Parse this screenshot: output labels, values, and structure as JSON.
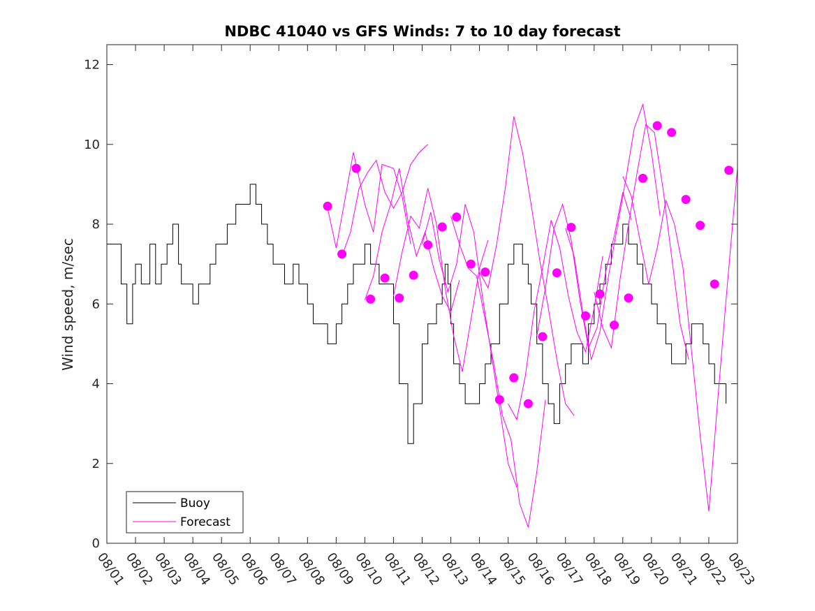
{
  "chart_data": {
    "type": "line",
    "title": "NDBC 41040 vs GFS Winds: 7 to 10 day forecast",
    "xlabel": "",
    "ylabel": "Wind speed, m/sec",
    "xlim": [
      0,
      22
    ],
    "ylim": [
      0,
      12.5
    ],
    "xticks": [
      0,
      1,
      2,
      3,
      4,
      5,
      6,
      7,
      8,
      9,
      10,
      11,
      12,
      13,
      14,
      15,
      16,
      17,
      18,
      19,
      20,
      21,
      22
    ],
    "xtick_labels": [
      "08/01",
      "08/02",
      "08/03",
      "08/04",
      "08/05",
      "08/06",
      "08/07",
      "08/08",
      "08/09",
      "08/10",
      "08/11",
      "08/12",
      "08/13",
      "08/14",
      "08/15",
      "08/16",
      "08/17",
      "08/18",
      "08/19",
      "08/20",
      "08/21",
      "08/22",
      "08/23"
    ],
    "yticks": [
      0,
      2,
      4,
      6,
      8,
      10,
      12
    ],
    "ytick_labels": [
      "0",
      "2",
      "4",
      "6",
      "8",
      "10",
      "12"
    ],
    "grid": false,
    "legend": {
      "position": "bottom-left",
      "entries": [
        "Buoy",
        "Forecast"
      ]
    },
    "colors": {
      "buoy": "#000000",
      "forecast": "#ff00ff",
      "axes": "#262626"
    },
    "series": [
      {
        "name": "Buoy",
        "x": [
          0,
          0.3,
          0.5,
          0.7,
          0.9,
          1.0,
          1.2,
          1.5,
          1.7,
          1.9,
          2.1,
          2.3,
          2.5,
          2.6,
          2.8,
          3.0,
          3.2,
          3.4,
          3.6,
          3.8,
          4.0,
          4.2,
          4.5,
          4.8,
          5.0,
          5.2,
          5.4,
          5.6,
          5.8,
          6.0,
          6.2,
          6.5,
          6.7,
          7.0,
          7.2,
          7.5,
          7.7,
          8.0,
          8.2,
          8.4,
          8.6,
          8.8,
          9.0,
          9.2,
          9.5,
          9.7,
          10.0,
          10.2,
          10.5,
          10.7,
          11.0,
          11.2,
          11.5,
          11.7,
          11.8,
          11.9,
          12.0,
          12.1,
          12.3,
          12.5,
          12.7,
          13.0,
          13.2,
          13.4,
          13.7,
          14.0,
          14.2,
          14.5,
          14.7,
          14.8,
          15.0,
          15.2,
          15.4,
          15.6,
          15.8,
          16.0,
          16.2,
          16.4,
          16.6,
          16.8,
          17.0,
          17.2,
          17.4,
          17.6,
          17.8,
          18.0,
          18.2,
          18.5,
          18.7,
          19.0,
          19.2,
          19.5,
          19.7,
          20.0,
          20.2,
          20.4,
          20.6,
          20.8,
          21.0,
          21.2,
          21.4,
          21.6
        ],
        "values": [
          7.5,
          7.5,
          6.5,
          5.5,
          6.5,
          7.0,
          6.5,
          7.5,
          6.5,
          7.0,
          7.5,
          8.0,
          7.0,
          6.5,
          6.5,
          6.0,
          6.5,
          6.5,
          7.0,
          7.5,
          7.5,
          8.0,
          8.5,
          8.5,
          9.0,
          8.5,
          8.0,
          7.5,
          7.0,
          7.0,
          6.5,
          7.0,
          6.5,
          6.0,
          5.5,
          5.5,
          5.0,
          5.5,
          6.0,
          6.5,
          7.0,
          7.0,
          7.5,
          7.0,
          6.5,
          6.5,
          5.5,
          4.0,
          2.5,
          3.5,
          5.0,
          5.5,
          6.0,
          6.5,
          7.0,
          6.5,
          5.5,
          4.5,
          4.0,
          3.5,
          3.5,
          4.0,
          4.5,
          5.0,
          6.0,
          7.0,
          7.5,
          7.0,
          6.5,
          6.0,
          5.0,
          4.0,
          3.5,
          3.0,
          4.0,
          4.5,
          5.0,
          5.0,
          4.5,
          5.5,
          6.0,
          6.5,
          7.0,
          7.5,
          7.5,
          8.0,
          7.5,
          7.0,
          6.5,
          6.0,
          5.5,
          5.0,
          4.5,
          4.5,
          5.0,
          5.5,
          5.5,
          5.0,
          4.5,
          4.0,
          4.0,
          3.5
        ]
      },
      {
        "name": "Forecast",
        "values_note": "multiple 7-to-10 day forecast traces",
        "lines": [
          {
            "x": [
              7.7,
              8.0,
              8.3,
              8.6,
              9.0,
              9.3,
              9.6,
              10.0,
              10.3,
              10.6
            ],
            "values": [
              8.4,
              7.4,
              8.6,
              9.8,
              8.5,
              7.8,
              9.5,
              9.4,
              8.7,
              7.5
            ]
          },
          {
            "x": [
              8.2,
              8.5,
              8.8,
              9.1,
              9.4,
              9.7,
              10.0,
              10.3,
              10.6,
              10.9,
              11.2
            ],
            "values": [
              7.2,
              7.8,
              8.9,
              9.3,
              9.6,
              8.8,
              8.4,
              8.8,
              9.5,
              9.8,
              10.0
            ]
          },
          {
            "x": [
              9.0,
              9.3,
              9.6,
              9.9,
              10.2,
              10.5,
              10.8,
              11.1,
              11.4,
              11.7,
              12.0,
              12.3
            ],
            "values": [
              6.1,
              6.7,
              7.8,
              8.5,
              9.4,
              8.1,
              7.2,
              7.8,
              6.9,
              6.2,
              5.8,
              6.6
            ]
          },
          {
            "x": [
              10.0,
              10.3,
              10.6,
              10.9,
              11.2,
              11.5,
              11.8,
              12.1,
              12.4,
              12.7,
              13.0,
              13.3
            ],
            "values": [
              6.2,
              7.3,
              8.2,
              7.9,
              8.9,
              8.0,
              6.4,
              5.2,
              4.3,
              5.6,
              6.9,
              7.6
            ]
          },
          {
            "x": [
              11.0,
              11.3,
              11.6,
              11.9,
              12.2,
              12.5,
              12.8,
              13.1,
              13.4,
              13.7,
              14.0,
              14.3
            ],
            "values": [
              7.5,
              8.3,
              7.1,
              6.3,
              7.0,
              8.5,
              7.8,
              6.2,
              4.8,
              3.4,
              2.0,
              1.4
            ]
          },
          {
            "x": [
              12.0,
              12.3,
              12.6,
              12.9,
              13.2,
              13.5,
              13.8,
              14.1,
              14.4,
              14.7,
              15.0,
              15.3
            ],
            "values": [
              8.2,
              7.5,
              6.9,
              6.7,
              5.6,
              4.5,
              3.2,
              2.6,
              1.0,
              0.4,
              1.8,
              3.6
            ]
          },
          {
            "x": [
              13.0,
              13.3,
              13.6,
              13.9,
              14.2,
              14.5,
              14.8,
              15.1,
              15.4,
              15.7,
              16.0,
              16.3
            ],
            "values": [
              6.8,
              6.4,
              7.5,
              8.9,
              10.7,
              9.8,
              8.5,
              7.1,
              5.9,
              4.6,
              3.5,
              3.2
            ]
          },
          {
            "x": [
              14.0,
              14.3,
              14.6,
              14.9,
              15.2,
              15.5,
              15.8,
              16.1,
              16.4,
              16.7,
              17.0,
              17.3
            ],
            "values": [
              3.5,
              3.1,
              4.2,
              5.8,
              6.9,
              8.1,
              7.4,
              6.2,
              5.3,
              4.8,
              5.9,
              7.2
            ]
          },
          {
            "x": [
              15.0,
              15.3,
              15.6,
              15.9,
              16.2,
              16.5,
              16.8,
              17.1,
              17.4,
              17.7,
              18.0,
              18.3
            ],
            "values": [
              5.2,
              6.4,
              7.9,
              8.5,
              7.6,
              6.1,
              4.9,
              5.4,
              6.8,
              7.7,
              8.8,
              8.1
            ]
          },
          {
            "x": [
              16.0,
              16.3,
              16.6,
              16.9,
              17.2,
              17.5,
              17.8,
              18.1,
              18.4,
              18.7,
              19.0,
              19.3
            ],
            "values": [
              7.9,
              7.2,
              5.8,
              4.6,
              5.3,
              6.7,
              7.9,
              9.1,
              10.4,
              11.0,
              9.8,
              8.2
            ]
          },
          {
            "x": [
              17.0,
              17.3,
              17.6,
              17.9,
              18.2,
              18.5,
              18.8,
              19.1,
              19.4,
              19.7,
              20.0,
              20.3
            ],
            "values": [
              6.3,
              5.4,
              4.9,
              6.6,
              8.0,
              9.3,
              10.5,
              10.3,
              8.9,
              7.2,
              5.5,
              4.6
            ]
          },
          {
            "x": [
              18.0,
              18.3,
              18.6,
              18.9,
              19.2,
              19.5,
              19.8,
              20.1,
              20.4,
              20.7,
              21.0,
              21.3,
              21.6,
              22.0
            ],
            "values": [
              9.2,
              8.7,
              7.6,
              6.5,
              7.4,
              8.6,
              8.0,
              6.9,
              4.8,
              2.7,
              0.8,
              3.5,
              6.1,
              9.4
            ]
          }
        ],
        "markers": {
          "x": [
            7.7,
            8.2,
            8.7,
            9.2,
            9.7,
            10.2,
            10.7,
            11.2,
            11.7,
            12.2,
            12.7,
            13.2,
            13.7,
            14.2,
            14.7,
            15.2,
            15.7,
            16.2,
            16.7,
            17.2,
            17.7,
            18.2,
            18.7,
            19.2,
            19.7,
            20.2,
            20.7,
            21.2,
            21.7
          ],
          "values": [
            8.45,
            7.25,
            9.4,
            6.12,
            6.65,
            6.15,
            6.72,
            7.48,
            7.93,
            8.18,
            7.0,
            6.8,
            3.6,
            4.15,
            3.5,
            5.18,
            6.78,
            7.92,
            5.7,
            6.25,
            5.47,
            6.15,
            9.15,
            10.47,
            10.3,
            8.62,
            7.97,
            6.5,
            9.35
          ]
        }
      }
    ]
  }
}
